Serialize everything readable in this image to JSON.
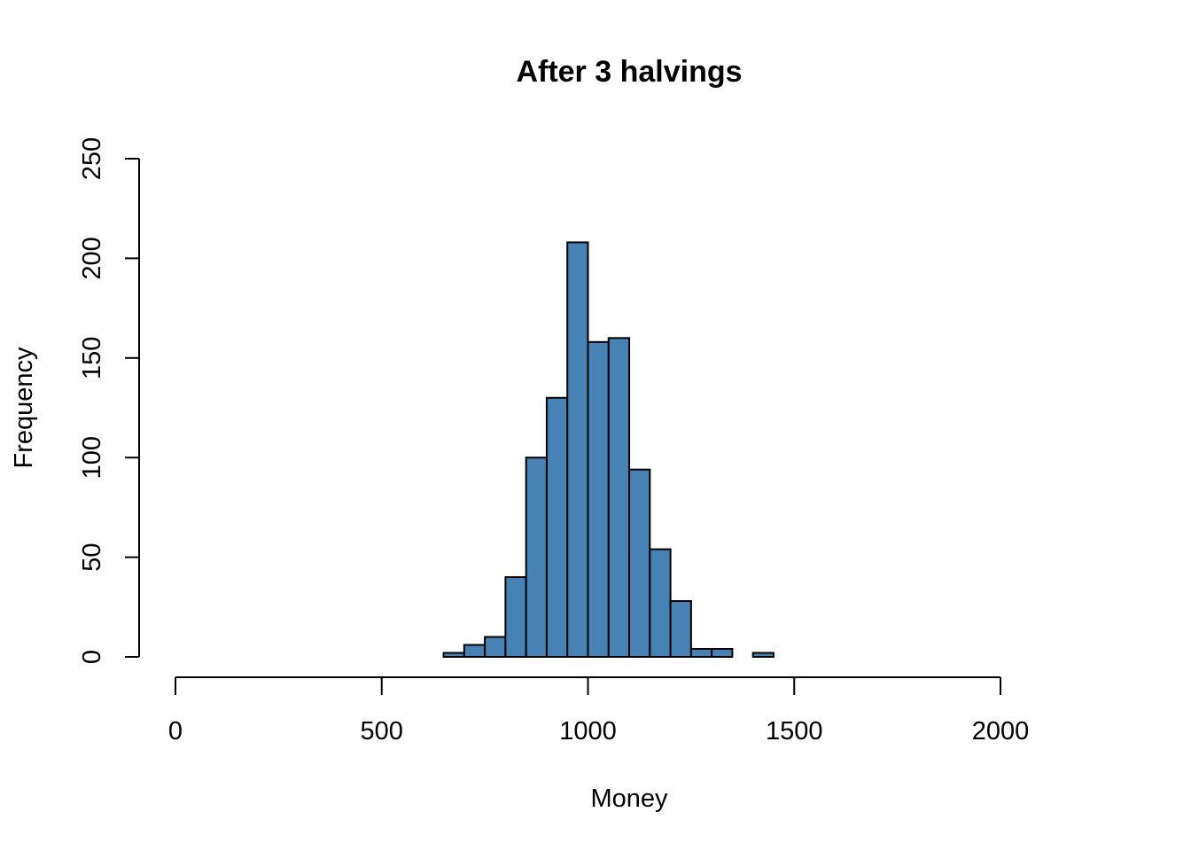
{
  "chart_data": {
    "type": "bar",
    "subtype": "histogram",
    "title": "After 3 halvings",
    "xlabel": "Money",
    "ylabel": "Frequency",
    "xlim": [
      0,
      2000
    ],
    "ylim": [
      0,
      250
    ],
    "x_ticks": [
      0,
      500,
      1000,
      1500,
      2000
    ],
    "y_ticks": [
      0,
      50,
      100,
      150,
      200,
      250
    ],
    "grid": false,
    "legend": "none",
    "bar_color": "#4682b4",
    "bar_outline": "#000000",
    "bin_width": 50,
    "bins": [
      {
        "start": 650,
        "end": 700,
        "count": 2
      },
      {
        "start": 700,
        "end": 750,
        "count": 6
      },
      {
        "start": 750,
        "end": 800,
        "count": 10
      },
      {
        "start": 800,
        "end": 850,
        "count": 40
      },
      {
        "start": 850,
        "end": 900,
        "count": 100
      },
      {
        "start": 900,
        "end": 950,
        "count": 130
      },
      {
        "start": 950,
        "end": 1000,
        "count": 208
      },
      {
        "start": 1000,
        "end": 1050,
        "count": 158
      },
      {
        "start": 1050,
        "end": 1100,
        "count": 160
      },
      {
        "start": 1100,
        "end": 1150,
        "count": 94
      },
      {
        "start": 1150,
        "end": 1200,
        "count": 54
      },
      {
        "start": 1200,
        "end": 1250,
        "count": 28
      },
      {
        "start": 1250,
        "end": 1300,
        "count": 4
      },
      {
        "start": 1300,
        "end": 1350,
        "count": 4
      },
      {
        "start": 1350,
        "end": 1400,
        "count": 0
      },
      {
        "start": 1400,
        "end": 1450,
        "count": 2
      }
    ]
  }
}
